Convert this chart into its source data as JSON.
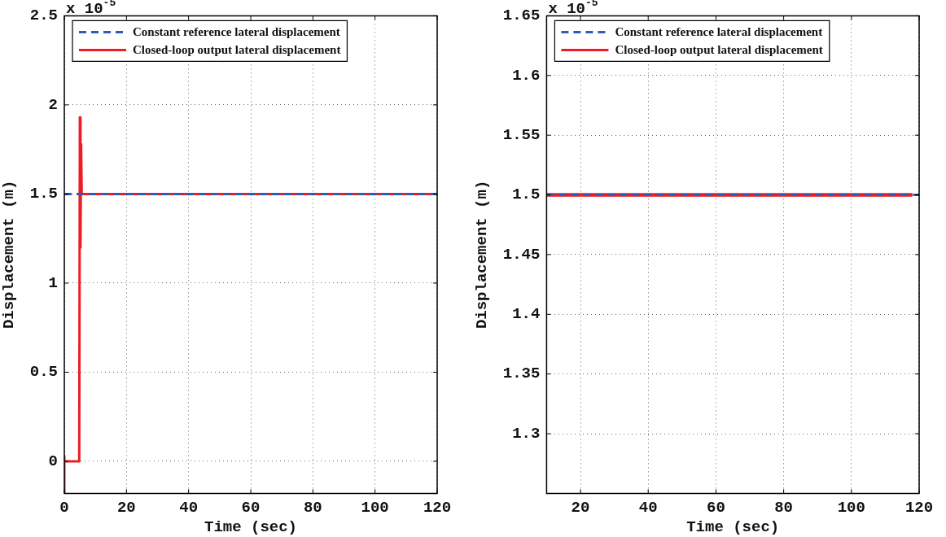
{
  "chart_data": [
    {
      "type": "line",
      "xlabel": "Time (sec)",
      "ylabel": "Displacement (m)",
      "annotations": [
        "x 10$^{-5}$"
      ],
      "xlim": [
        0,
        120
      ],
      "xticks": [
        0,
        20,
        40,
        60,
        80,
        100,
        120
      ],
      "ylim": [
        -0.18,
        2.5
      ],
      "yticks": [
        0,
        0.5,
        1,
        1.5,
        2,
        2.5
      ],
      "grid": true,
      "legend": "top left",
      "series": [
        {
          "name": "Constant reference lateral displacement",
          "color": "#2f5bb7",
          "line_style": "dashed",
          "x": [
            0,
            120
          ],
          "values": [
            1.5,
            1.5
          ]
        },
        {
          "name": "Closed-loop output lateral displacement",
          "color": "#ee1c25",
          "line_style": "solid",
          "x": [
            0,
            0,
            0,
            4.8,
            5,
            5.2,
            5.4,
            5.6,
            118
          ],
          "values": [
            -0.18,
            0.03,
            0,
            0,
            1.93,
            1.2,
            1.78,
            1.5,
            1.5
          ]
        }
      ]
    },
    {
      "type": "line",
      "xlabel": "Time (sec)",
      "ylabel": "Displacement (m)",
      "annotations": [
        "x 10$^{-5}$"
      ],
      "xlim": [
        10,
        120
      ],
      "xticks": [
        20,
        40,
        60,
        80,
        100,
        120
      ],
      "ylim": [
        1.25,
        1.65
      ],
      "yticks": [
        1.3,
        1.35,
        1.4,
        1.45,
        1.5,
        1.55,
        1.6,
        1.65
      ],
      "grid": true,
      "legend": "top left",
      "series": [
        {
          "name": "Constant reference lateral displacement",
          "color": "#2f5bb7",
          "line_style": "dashed",
          "x": [
            10,
            120
          ],
          "values": [
            1.5,
            1.5
          ]
        },
        {
          "name": "Closed-loop output lateral displacement",
          "color": "#ee1c25",
          "line_style": "solid",
          "x": [
            10,
            118
          ],
          "values": [
            1.5,
            1.5
          ]
        }
      ]
    }
  ]
}
